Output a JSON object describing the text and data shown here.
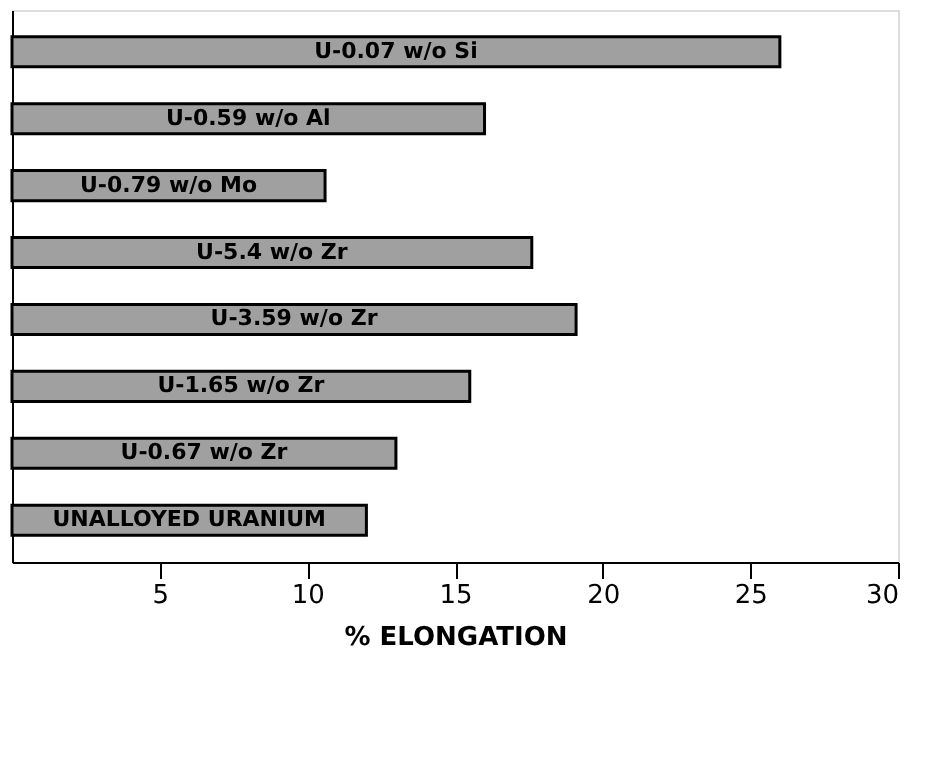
{
  "chart_data": {
    "type": "bar",
    "orientation": "horizontal",
    "xlabel": "% ELONGATION",
    "categories": [
      "U-0.07 w/o Si",
      "U-0.59 w/o Al",
      "U-0.79 w/o Mo",
      "U-5.4 w/o Zr",
      "U-3.59 w/o Zr",
      "U-1.65 w/o Zr",
      "U-0.67 w/o Zr",
      "UNALLOYED URANIUM"
    ],
    "values": [
      26.0,
      16.0,
      10.6,
      17.6,
      19.1,
      15.5,
      13.0,
      12.0
    ],
    "color": "#a0a0a0",
    "xlim": [
      0,
      30
    ],
    "xticks": [
      5,
      10,
      15,
      20,
      25,
      30
    ],
    "grid": false,
    "tick_labels": "x"
  }
}
